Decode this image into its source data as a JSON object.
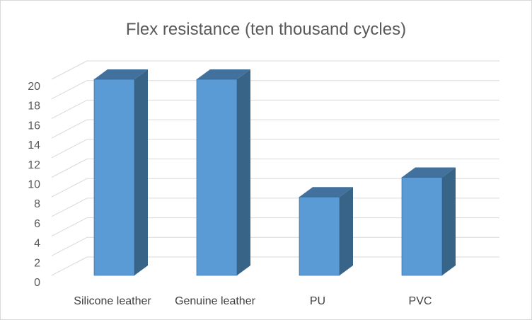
{
  "chart_data": {
    "type": "bar",
    "title": "Flex resistance (ten thousand cycles)",
    "categories": [
      "Silicone leather",
      "Genuine leather",
      "PU",
      "PVC"
    ],
    "values": [
      20,
      20,
      8,
      10
    ],
    "ylim": [
      0,
      20
    ],
    "yticks": [
      0,
      2,
      4,
      6,
      8,
      10,
      12,
      14,
      16,
      18,
      20
    ],
    "grid": true,
    "legend": "none",
    "style": "3d-column",
    "colors": {
      "front": "#5b9bd5",
      "top": "#41719c",
      "side": "#386488",
      "edge": "#2e5f8a"
    }
  }
}
